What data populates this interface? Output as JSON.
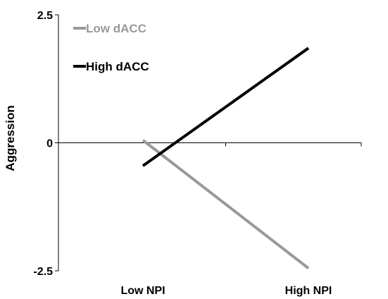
{
  "chart_data": {
    "type": "line",
    "categories": [
      "Low NPI",
      "High NPI"
    ],
    "series": [
      {
        "name": "Low dACC",
        "values": [
          0.05,
          -2.45
        ],
        "color": "#999999"
      },
      {
        "name": "High dACC",
        "values": [
          -0.45,
          1.85
        ],
        "color": "#000000"
      }
    ],
    "ylabel": "Aggression",
    "xlabel": "",
    "title": "",
    "ylim": [
      -2.5,
      2.5
    ],
    "y_ticks": [
      "2.5",
      "0",
      "-2.5"
    ],
    "legend_position": "top-left",
    "grid": false
  }
}
